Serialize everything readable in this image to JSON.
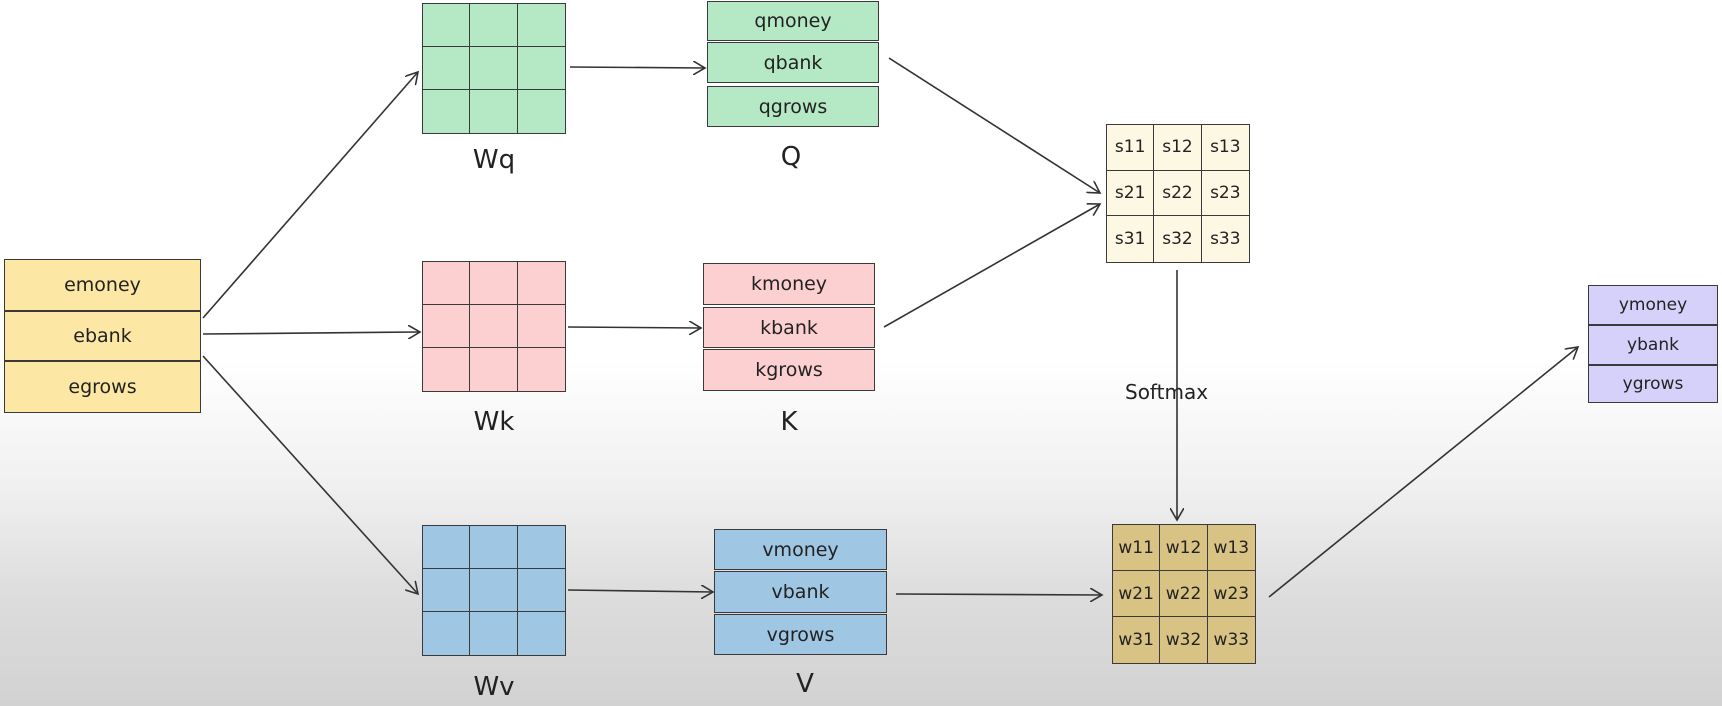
{
  "embeddings": [
    "emoney",
    "ebank",
    "egrows"
  ],
  "weights": {
    "wq_label": "Wq",
    "wk_label": "Wk",
    "wv_label": "Wv"
  },
  "query": {
    "label": "Q",
    "rows": [
      "qmoney",
      "qbank",
      "qgrows"
    ]
  },
  "key": {
    "label": "K",
    "rows": [
      "kmoney",
      "kbank",
      "kgrows"
    ]
  },
  "value": {
    "label": "V",
    "rows": [
      "vmoney",
      "vbank",
      "vgrows"
    ]
  },
  "scores": [
    "s11",
    "s12",
    "s13",
    "s21",
    "s22",
    "s23",
    "s31",
    "s32",
    "s33"
  ],
  "softmax_label": "Softmax",
  "attention_weights": [
    "w11",
    "w12",
    "w13",
    "w21",
    "w22",
    "w23",
    "w31",
    "w32",
    "w33"
  ],
  "outputs": [
    "ymoney",
    "ybank",
    "ygrows"
  ],
  "colors": {
    "embedding": "#fce7a4",
    "query": "#b5e8c4",
    "key": "#fccfd1",
    "value": "#9fc6e3",
    "scores": "#fdf8e4",
    "weights": "#d9c384",
    "output": "#d6d1fb"
  }
}
